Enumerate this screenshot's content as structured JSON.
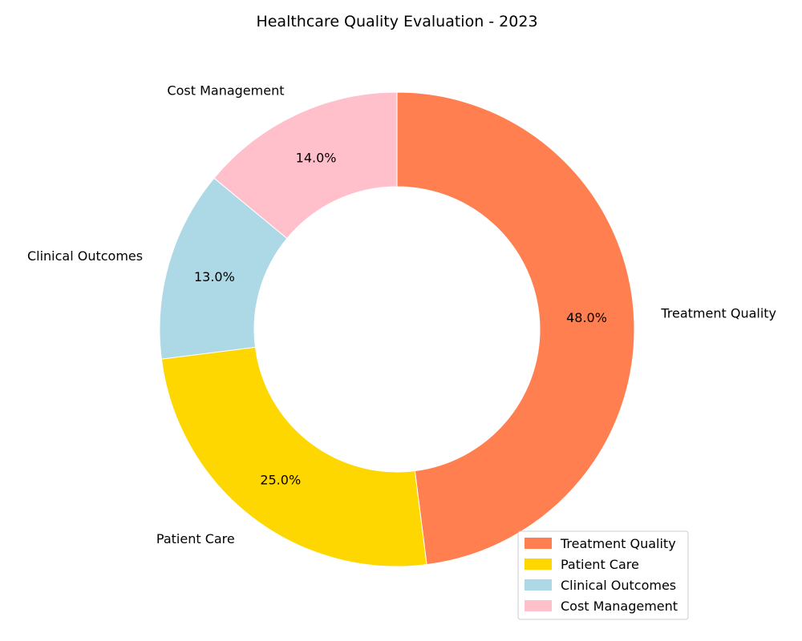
{
  "chart_data": {
    "type": "pie",
    "style": "donut",
    "title": "Healthcare Quality Evaluation - 2023",
    "categories": [
      "Treatment Quality",
      "Patient Care",
      "Clinical Outcomes",
      "Cost Management"
    ],
    "values": [
      48.0,
      25.0,
      13.0,
      14.0
    ],
    "percent_labels": [
      "48.0%",
      "25.0%",
      "13.0%",
      "14.0%"
    ],
    "colors": [
      "#ff7f50",
      "#ffd700",
      "#add8e6",
      "#ffc0cb"
    ],
    "start_angle": "top, clockwise",
    "legend": {
      "position": "lower-right",
      "entries": [
        "Treatment Quality",
        "Patient Care",
        "Clinical Outcomes",
        "Cost Management"
      ]
    }
  }
}
